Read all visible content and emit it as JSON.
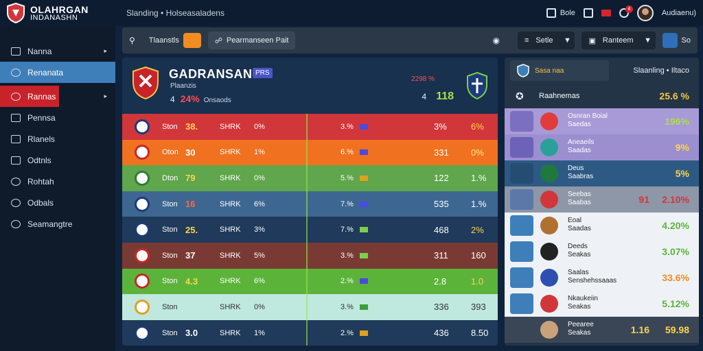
{
  "brand": {
    "line1": "OLAHRGAN",
    "line2": "INDANASHN"
  },
  "top_title": "Slanding • Holseasaladens",
  "top_right": {
    "btn1": "Bole",
    "user": "Audiaenu)",
    "notif_count": "4"
  },
  "sidebar": {
    "items": [
      {
        "label": "Nanna",
        "chev": "▸"
      },
      {
        "label": "Renanata",
        "chev": ""
      },
      {
        "label": "Rannas",
        "chev": "▸"
      },
      {
        "label": "Pennsa",
        "chev": ""
      },
      {
        "label": "Rlanels",
        "chev": ""
      },
      {
        "label": "Odtnls",
        "chev": ""
      },
      {
        "label": "Rohtah",
        "chev": ""
      },
      {
        "label": "Odbals",
        "chev": ""
      },
      {
        "label": "Seamangtre",
        "chev": ""
      }
    ]
  },
  "toolbar": {
    "search_label": "Tlaanstls",
    "filter_label": "Pearmanseen Pait",
    "btn1": "Setle",
    "btn2": "Ranteem",
    "btn3": "So"
  },
  "panel": {
    "title": "GADRANSAN",
    "tag": "PRS",
    "subtitle": "Plaanzis",
    "stat_pre": "4",
    "stat_value": "24%",
    "stat_label": "Onsaods",
    "right_top": "2298 %",
    "right_pre": "4",
    "right_value": "118"
  },
  "rows": [
    {
      "c1": "Ston",
      "c2": "38.",
      "c3": "SHRK",
      "c4": "0%",
      "c5": "3.%",
      "c6": "3%",
      "c7": "6%",
      "bg": "#d1363a",
      "c2color": "#ffd54a",
      "c7color": "#ffd54a",
      "flag": "#4a4ae0",
      "logo": "#1d3b7a"
    },
    {
      "c1": "Oton",
      "c2": "30",
      "c3": "SHRK",
      "c4": "1%",
      "c5": "6.%",
      "c6": "331",
      "c7": "0%",
      "bg": "#f0711f",
      "c2color": "#ffffff",
      "c7color": "#ffe68a",
      "flag": "#4a4ae0",
      "logo": "#c62828"
    },
    {
      "c1": "Dton",
      "c2": "79",
      "c3": "SHRK",
      "c4": "0%",
      "c5": "5.%",
      "c6": "122",
      "c7": "1.%",
      "bg": "#5fa64c",
      "c2color": "#ffd54a",
      "c7color": "#ffffff",
      "flag": "#e0a020",
      "logo": "#2e7d32"
    },
    {
      "c1": "Ston",
      "c2": "16",
      "c3": "SHRK",
      "c4": "6%",
      "c5": "7.%",
      "c6": "535",
      "c7": "1.%",
      "bg": "#3d6791",
      "c2color": "#ff6b3d",
      "c7color": "#ffffff",
      "flag": "#4a4ae0",
      "logo": "#1d3b7a"
    },
    {
      "c1": "Ston",
      "c2": "25.",
      "c3": "SHRK",
      "c4": "3%",
      "c5": "7.%",
      "c6": "468",
      "c7": "2%",
      "bg": "#1f3a5a",
      "c2color": "#ffd54a",
      "c7color": "#ffd54a",
      "flag": "#7bd04a",
      "logo": "#1d3b7a"
    },
    {
      "c1": "Ston",
      "c2": "37",
      "c3": "SHRK",
      "c4": "5%",
      "c5": "3.%",
      "c6": "311",
      "c7": "160",
      "bg": "#7a3a34",
      "c2color": "#ffffff",
      "c7color": "#ffffff",
      "flag": "#7bd04a",
      "logo": "#c62828"
    },
    {
      "c1": "Ston",
      "c2": "4.3",
      "c3": "SHRK",
      "c4": "6%",
      "c5": "2.%",
      "c6": "2.8",
      "c7": "1.0",
      "bg": "#5cb33a",
      "c2color": "#ffd54a",
      "c7color": "#ffd54a",
      "flag": "#4a4ae0",
      "logo": "#c62828"
    },
    {
      "c1": "Ston",
      "c2": "",
      "c3": "SHRK",
      "c4": "0%",
      "c5": "3.%",
      "c6": "336",
      "c7": "393",
      "bg": "#bfe8df",
      "c2color": "#333333",
      "c7color": "#333333",
      "flag": "#3aa03a",
      "logo": "#e0a020"
    },
    {
      "c1": "Ston",
      "c2": "3.0",
      "c3": "SHRK",
      "c4": "1%",
      "c5": "2.%",
      "c6": "436",
      "c7": "8.50",
      "bg": "#1f3a5a",
      "c2color": "#ffffff",
      "c7color": "#ffffff",
      "flag": "#e0a020",
      "logo": "#1d3b7a"
    }
  ],
  "rpanel": {
    "tab_label": "Sasa naa",
    "right_title": "Slaanling • Iltaco",
    "sub_label": "Raahnemas",
    "sub_value": "25.6 %",
    "rows": [
      {
        "name1": "Osnran Boial",
        "name2": "Saedas",
        "val": "196%",
        "bg": "#a89ad6",
        "vcolor": "#a8e04a",
        "badge": "#7a6fc0",
        "pic": "#e23b3b",
        "extra": ""
      },
      {
        "name1": "Aneaeils",
        "name2": "Saadas",
        "val": "9%",
        "bg": "#9b8fd0",
        "vcolor": "#ffd54a",
        "badge": "#6c62b8",
        "pic": "#2aa198",
        "extra": ""
      },
      {
        "name1": "Deus",
        "name2": "Saabras",
        "val": "5%",
        "bg": "#2d5a84",
        "vcolor": "#ffd54a",
        "badge": "#254d73",
        "pic": "#1e7a3c",
        "extra": ""
      },
      {
        "name1": "Seebas",
        "name2": "Saabas",
        "val": "2.10%",
        "bg": "#8d97a8",
        "vcolor": "#d1363a",
        "badge": "#5b78a8",
        "pic": "#d1363a",
        "extra": "91"
      },
      {
        "name1": "Eoal",
        "name2": "Saadas",
        "val": "4.20%",
        "bg": "#eef2f6",
        "vcolor": "#5cb33a",
        "badge": "#3f7fb9",
        "pic": "#b07030",
        "extra": ""
      },
      {
        "name1": "Deeds",
        "name2": "Seakas",
        "val": "3.07%",
        "bg": "#eef2f6",
        "vcolor": "#5cb33a",
        "badge": "#3f7fb9",
        "pic": "#222222",
        "extra": ""
      },
      {
        "name1": "Saalas",
        "name2": "Senshehssaaas",
        "val": "33.6%",
        "bg": "#eef2f6",
        "vcolor": "#f08c22",
        "badge": "#3f7fb9",
        "pic": "#2f4fb0",
        "extra": ""
      },
      {
        "name1": "Nkaukeiin",
        "name2": "Seakas",
        "val": "5.12%",
        "bg": "#eef2f6",
        "vcolor": "#5cb33a",
        "badge": "#3f7fb9",
        "pic": "#d1363a",
        "extra": ""
      },
      {
        "name1": "Peearee",
        "name2": "Seakas",
        "val": "59.98",
        "bg": "#3a4655",
        "vcolor": "#ffd54a",
        "badge": "#3a4655",
        "pic": "#c9a27c",
        "extra": "1.16"
      }
    ]
  },
  "colors": {
    "accent_blue": "#3f7fb9",
    "accent_red": "#c8232b",
    "toolbar": "#2b3848"
  }
}
